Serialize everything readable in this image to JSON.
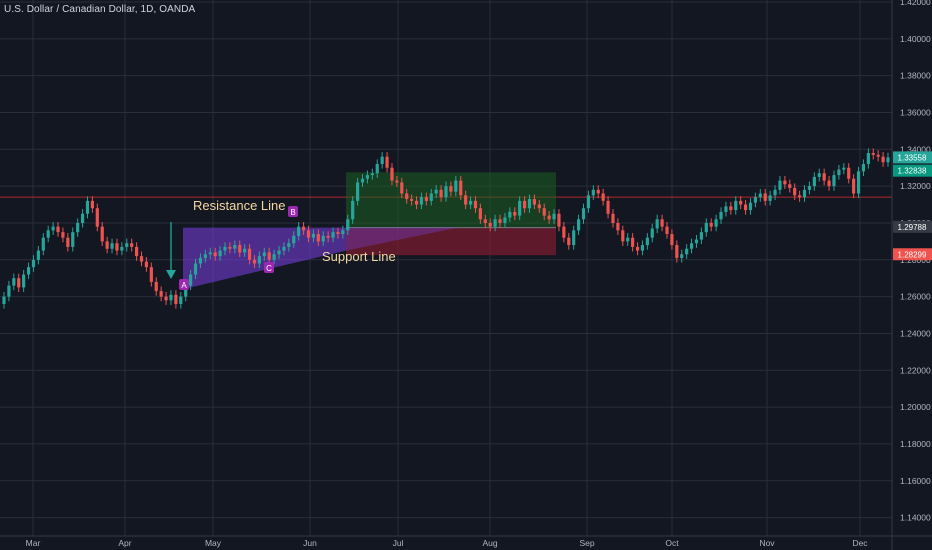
{
  "header": {
    "title": "U.S. Dollar / Canadian Dollar, 1D, OANDA"
  },
  "colors": {
    "background": "#131722",
    "grid": "#2a2e39",
    "axis_text": "#b2b5be",
    "up_candle": "#26a69a",
    "down_candle": "#ef5350",
    "pattern_fill": "#7b3fe4",
    "long_profit": "#1b5e20",
    "long_loss": "#7f1d2d",
    "resistance_color": "#f5d7a0",
    "support_color": "#f5d7a0",
    "horizontal_line": "#b02a2a",
    "arrow": "#26a69a"
  },
  "chart_data": {
    "type": "candlestick",
    "title": "U.S. Dollar / Canadian Dollar, 1D, OANDA",
    "x_labels": [
      "Mar",
      "Apr",
      "May",
      "Jun",
      "Jul",
      "Aug",
      "Sep",
      "Oct",
      "Nov",
      "Dec"
    ],
    "y_ticks": [
      "1.42000",
      "1.40000",
      "1.38000",
      "1.36000",
      "1.34000",
      "1.32000",
      "1.30000",
      "1.28000",
      "1.26000",
      "1.24000",
      "1.22000",
      "1.20000",
      "1.18000",
      "1.16000",
      "1.14000"
    ],
    "ylim": [
      1.13,
      1.42
    ],
    "grid": true,
    "price_badges": [
      {
        "value": "1.33558",
        "y": 1.3356,
        "color": "#26a69a"
      },
      {
        "value": "1.32838",
        "y": 1.3284,
        "color": "#089981"
      },
      {
        "value": "1.29788",
        "y": 1.2979,
        "color": "#363a45"
      },
      {
        "value": "1.28299",
        "y": 1.283,
        "color": "#ef5350"
      }
    ],
    "horizontal_line": {
      "y": 1.314
    },
    "annotations": {
      "resistance_label": "Resistance Line",
      "support_label": "Support Line",
      "point_a": "A",
      "point_b": "B",
      "point_c": "C"
    },
    "closes": [
      1.26,
      1.266,
      1.27,
      1.265,
      1.272,
      1.276,
      1.28,
      1.285,
      1.292,
      1.296,
      1.298,
      1.295,
      1.292,
      1.287,
      1.295,
      1.3,
      1.305,
      1.312,
      1.308,
      1.298,
      1.29,
      1.286,
      1.289,
      1.285,
      1.287,
      1.289,
      1.287,
      1.282,
      1.279,
      1.276,
      1.268,
      1.263,
      1.26,
      1.258,
      1.261,
      1.256,
      1.26,
      1.266,
      1.272,
      1.278,
      1.281,
      1.283,
      1.284,
      1.282,
      1.285,
      1.287,
      1.286,
      1.288,
      1.284,
      1.286,
      1.28,
      1.278,
      1.282,
      1.284,
      1.28,
      1.283,
      1.285,
      1.287,
      1.289,
      1.293,
      1.298,
      1.296,
      1.292,
      1.294,
      1.29,
      1.293,
      1.292,
      1.295,
      1.294,
      1.296,
      1.302,
      1.312,
      1.322,
      1.324,
      1.326,
      1.327,
      1.332,
      1.336,
      1.33,
      1.323,
      1.322,
      1.316,
      1.313,
      1.312,
      1.31,
      1.314,
      1.312,
      1.316,
      1.318,
      1.314,
      1.32,
      1.317,
      1.323,
      1.315,
      1.31,
      1.312,
      1.308,
      1.302,
      1.3,
      1.298,
      1.302,
      1.3,
      1.303,
      1.306,
      1.304,
      1.312,
      1.308,
      1.313,
      1.31,
      1.308,
      1.304,
      1.302,
      1.305,
      1.298,
      1.292,
      1.288,
      1.296,
      1.302,
      1.308,
      1.315,
      1.318,
      1.316,
      1.312,
      1.305,
      1.3,
      1.296,
      1.29,
      1.292,
      1.287,
      1.285,
      1.288,
      1.292,
      1.297,
      1.302,
      1.298,
      1.294,
      1.288,
      1.281,
      1.283,
      1.286,
      1.289,
      1.291,
      1.295,
      1.3,
      1.298,
      1.302,
      1.306,
      1.309,
      1.307,
      1.312,
      1.31,
      1.307,
      1.311,
      1.314,
      1.316,
      1.312,
      1.315,
      1.318,
      1.323,
      1.321,
      1.319,
      1.315,
      1.314,
      1.318,
      1.32,
      1.325,
      1.327,
      1.323,
      1.32,
      1.326,
      1.329,
      1.33,
      1.324,
      1.316,
      1.328,
      1.332,
      1.338,
      1.337,
      1.336,
      1.333,
      1.3356
    ]
  }
}
